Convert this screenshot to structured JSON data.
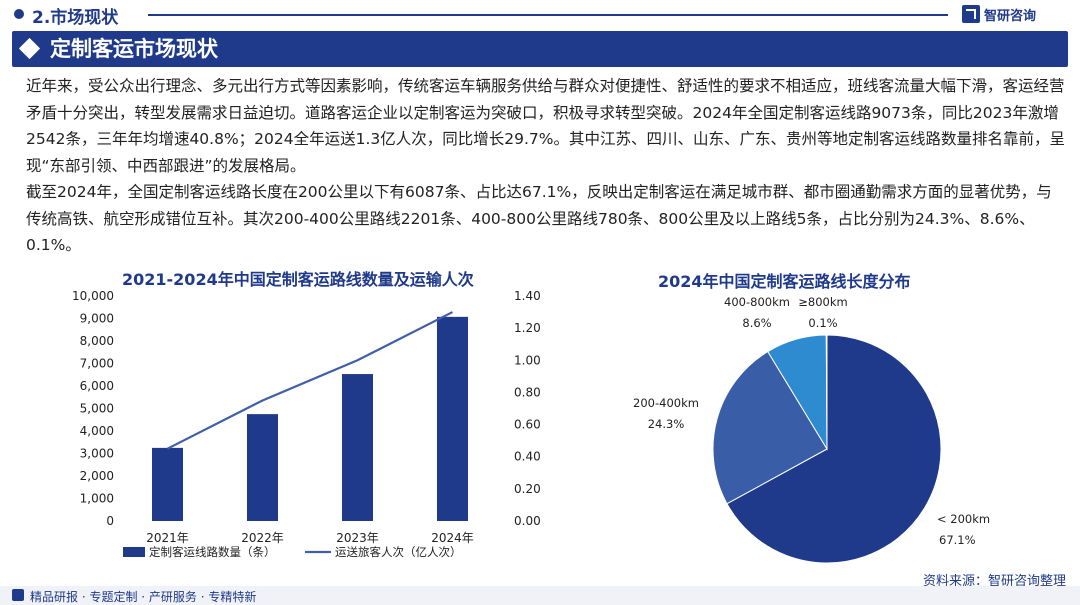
{
  "header": {
    "section_title": "2.市场现状",
    "brand": "智研咨询"
  },
  "banner": {
    "title": "定制客运市场现状"
  },
  "body": {
    "paragraphs": [
      "近年来，受公众出行理念、多元出行方式等因素影响，传统客运车辆服务供给与群众对便捷性、舒适性的要求不相适应，班线客流量大幅下滑，客运经营矛盾十分突出，转型发展需求日益迫切。道路客运企业以定制客运为突破口，积极寻求转型突破。2024年全国定制客运线路9073条，同比2023年激增2542条，三年年均增速40.8%；2024全年运送1.3亿人次，同比增长29.7%。其中江苏、四川、山东、广东、贵州等地定制客运线路数量排名靠前，呈现“东部引领、中西部跟进”的发展格局。",
      "截至2024年，全国定制客运线路长度在200公里以下有6087条、占比达67.1%，反映出定制客运在满足城市群、都市圈通勤需求方面的显著优势，与传统高铁、航空形成错位互补。其次200-400公里路线2201条、400-800公里路线780条、800公里及以上路线5条，占比分别为24.3%、8.6%、0.1%。"
    ]
  },
  "chart_data": [
    {
      "type": "bar",
      "title": "2021-2024年中国定制客运路线数量及运输人次",
      "categories": [
        "2021年",
        "2022年",
        "2023年",
        "2024年"
      ],
      "series": [
        {
          "name": "定制客运线路数量（条）",
          "type": "bar",
          "axis": "left",
          "values": [
            3250,
            4750,
            6531,
            9073
          ]
        },
        {
          "name": "运送旅客人次（亿人次）",
          "type": "line",
          "axis": "right",
          "values": [
            0.45,
            0.75,
            1.0,
            1.3
          ]
        }
      ],
      "y_left": {
        "min": 0,
        "max": 10000,
        "ticks": [
          "0",
          "1,000",
          "2,000",
          "3,000",
          "4,000",
          "5,000",
          "6,000",
          "7,000",
          "8,000",
          "9,000",
          "10,000"
        ]
      },
      "y_right": {
        "min": 0,
        "max": 1.4,
        "ticks": [
          "0.00",
          "0.20",
          "0.40",
          "0.60",
          "0.80",
          "1.00",
          "1.20",
          "1.40"
        ]
      },
      "grid": false,
      "legend": "bottom",
      "colors": {
        "bar": "#1f3a8a",
        "line": "#3f5fa8"
      }
    },
    {
      "type": "pie",
      "title": "2024年中国定制客运路线长度分布",
      "slices": [
        {
          "label": "< 200km",
          "value": 67.1,
          "value_label": "67.1%",
          "color": "#1f3a8a"
        },
        {
          "label": "200-400km",
          "value": 24.3,
          "value_label": "24.3%",
          "color": "#3a5da8"
        },
        {
          "label": "400-800km",
          "value": 8.6,
          "value_label": "8.6%",
          "color": "#2e8bd0"
        },
        {
          "label": "≥800km",
          "value": 0.1,
          "value_label": "0.1%",
          "color": "#7ab8e6"
        }
      ]
    }
  ],
  "source": "资料来源：智研咨询整理",
  "footer": {
    "text": "精品研报 · 专题定制 · 产研服务 · 专精特新"
  }
}
